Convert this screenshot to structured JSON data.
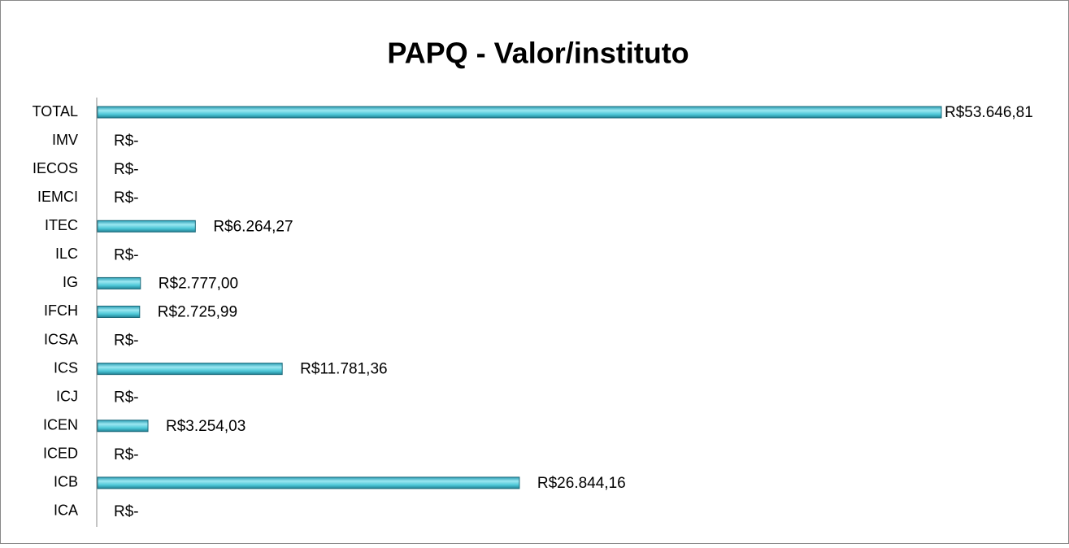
{
  "chart_data": {
    "type": "bar",
    "orientation": "horizontal",
    "title": "PAPQ - Valor/instituto",
    "categories": [
      "TOTAL",
      "IMV",
      "IECOS",
      "IEMCI",
      "ITEC",
      "ILC",
      "IG",
      "IFCH",
      "ICSA",
      "ICS",
      "ICJ",
      "ICEN",
      "ICED",
      "ICB",
      "ICA"
    ],
    "values": [
      53646.81,
      0,
      0,
      0,
      6264.27,
      0,
      2777.0,
      2725.99,
      0,
      11781.36,
      0,
      3254.03,
      0,
      26844.16,
      0
    ],
    "value_labels": [
      "R$53.646,81",
      "R$-",
      "R$-",
      "R$-",
      "R$6.264,27",
      "R$-",
      "R$2.777,00",
      "R$2.725,99",
      "R$-",
      "R$11.781,36",
      "R$-",
      "R$3.254,03",
      "R$-",
      "R$26.844,16",
      "R$-"
    ],
    "color": "#4bc6d6"
  }
}
